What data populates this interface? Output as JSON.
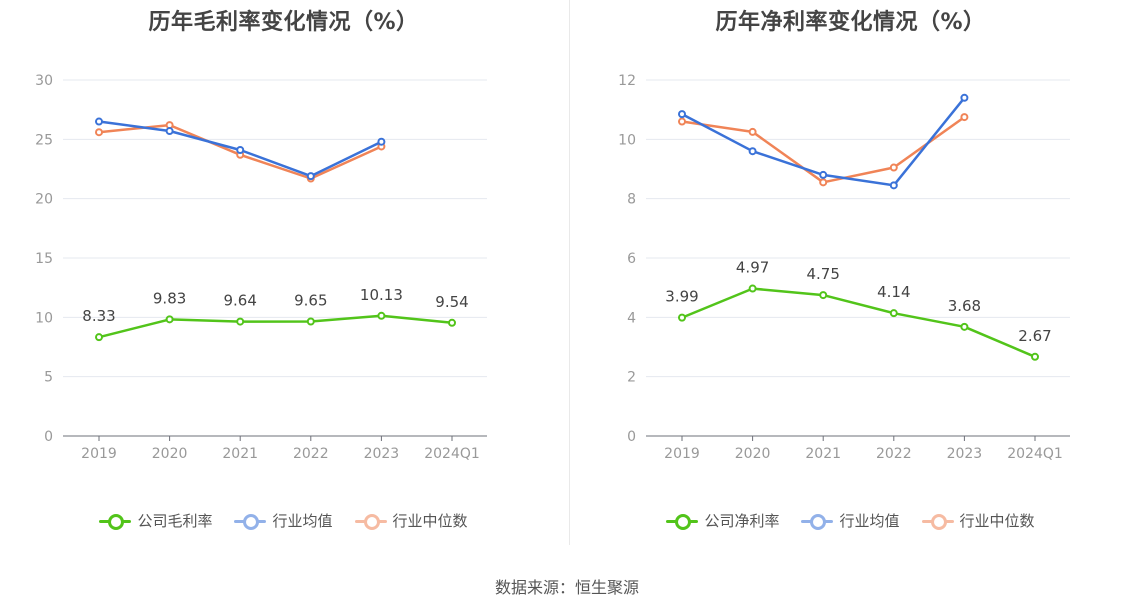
{
  "source": "数据来源：恒生聚源",
  "colors": {
    "company": "#52c41a",
    "industry_avg": "#3a72d8",
    "industry_median": "#f08457",
    "grid": "#e4e8ef",
    "axis": "#999999"
  },
  "chart_data": [
    {
      "type": "line",
      "title": "历年毛利率变化情况（%）",
      "categories": [
        "2019",
        "2020",
        "2021",
        "2022",
        "2023",
        "2024Q1"
      ],
      "yticks": [
        "0",
        "5",
        "10",
        "15",
        "20",
        "25",
        "30"
      ],
      "ylim": [
        0,
        30
      ],
      "grid": true,
      "legend_position": "bottom",
      "series": [
        {
          "name": "公司毛利率",
          "key": "company",
          "values": [
            8.33,
            9.83,
            9.64,
            9.65,
            10.13,
            9.54
          ],
          "labels": [
            "8.33",
            "9.83",
            "9.64",
            "9.65",
            "10.13",
            "9.54"
          ]
        },
        {
          "name": "行业均值",
          "key": "industry_avg",
          "values": [
            26.5,
            25.7,
            24.1,
            21.9,
            24.8,
            null
          ]
        },
        {
          "name": "行业中位数",
          "key": "industry_median",
          "values": [
            25.6,
            26.2,
            23.7,
            21.7,
            24.4,
            null
          ]
        }
      ]
    },
    {
      "type": "line",
      "title": "历年净利率变化情况（%）",
      "categories": [
        "2019",
        "2020",
        "2021",
        "2022",
        "2023",
        "2024Q1"
      ],
      "yticks": [
        "0",
        "2",
        "4",
        "6",
        "8",
        "10",
        "12"
      ],
      "ylim": [
        0,
        12
      ],
      "grid": true,
      "legend_position": "bottom",
      "series": [
        {
          "name": "公司净利率",
          "key": "company",
          "values": [
            3.99,
            4.97,
            4.75,
            4.14,
            3.68,
            2.67
          ],
          "labels": [
            "3.99",
            "4.97",
            "4.75",
            "4.14",
            "3.68",
            "2.67"
          ]
        },
        {
          "name": "行业均值",
          "key": "industry_avg",
          "values": [
            10.85,
            9.6,
            8.8,
            8.45,
            11.4,
            null
          ]
        },
        {
          "name": "行业中位数",
          "key": "industry_median",
          "values": [
            10.6,
            10.25,
            8.55,
            9.05,
            10.75,
            null
          ]
        }
      ]
    }
  ]
}
